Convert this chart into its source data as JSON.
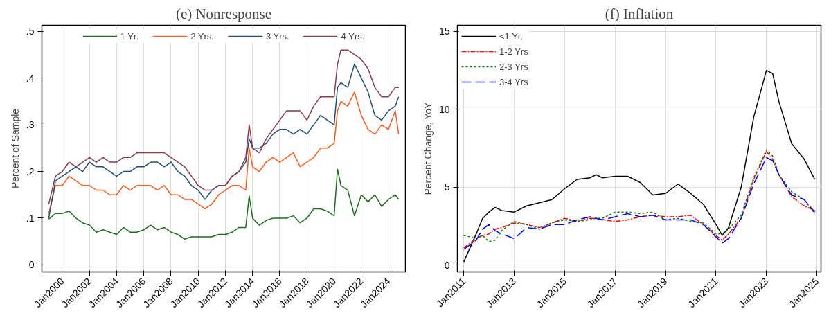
{
  "chart_data": [
    {
      "type": "line",
      "title": "(e) Nonresponse",
      "ylabel": "Percent of Sample",
      "legend": "top",
      "grid": "x",
      "line_style": "solid",
      "x": [
        "1999-01",
        "1999-07",
        "2000-01",
        "2000-07",
        "2001-01",
        "2001-07",
        "2002-01",
        "2002-07",
        "2003-01",
        "2003-07",
        "2004-01",
        "2004-07",
        "2005-01",
        "2005-07",
        "2006-01",
        "2006-07",
        "2007-01",
        "2007-07",
        "2008-01",
        "2008-07",
        "2009-01",
        "2009-07",
        "2010-01",
        "2010-07",
        "2011-01",
        "2011-07",
        "2012-01",
        "2012-07",
        "2013-01",
        "2013-07",
        "2013-10",
        "2014-01",
        "2014-07",
        "2015-01",
        "2015-07",
        "2016-01",
        "2016-07",
        "2017-01",
        "2017-07",
        "2018-01",
        "2018-07",
        "2019-01",
        "2019-07",
        "2020-01",
        "2020-04",
        "2020-07",
        "2021-01",
        "2021-07",
        "2022-01",
        "2022-07",
        "2023-01",
        "2023-07",
        "2024-01",
        "2024-07",
        "2024-10"
      ],
      "xlim": [
        "1998-07",
        "2025-04"
      ],
      "xticks": [
        {
          "value": "2000-01",
          "label": "Jan2000"
        },
        {
          "value": "2002-01",
          "label": "Jan2002"
        },
        {
          "value": "2004-01",
          "label": "Jan2004"
        },
        {
          "value": "2006-01",
          "label": "Jan2006"
        },
        {
          "value": "2008-01",
          "label": "Jan2008"
        },
        {
          "value": "2010-01",
          "label": "Jan2010"
        },
        {
          "value": "2012-01",
          "label": "Jan2012"
        },
        {
          "value": "2014-01",
          "label": "Jan2014"
        },
        {
          "value": "2016-01",
          "label": "Jan2016"
        },
        {
          "value": "2018-01",
          "label": "Jan2018"
        },
        {
          "value": "2020-01",
          "label": "Jan2020"
        },
        {
          "value": "2022-01",
          "label": "Jan2022"
        },
        {
          "value": "2024-01",
          "label": "Jan2024"
        }
      ],
      "ylim": [
        -0.015,
        0.513
      ],
      "yticks": [
        0,
        {
          "value": 0.1,
          "label": ".1"
        },
        {
          "value": 0.2,
          "label": ".2"
        },
        {
          "value": 0.3,
          "label": ".3"
        },
        {
          "value": 0.4,
          "label": ".4"
        },
        {
          "value": 0.5,
          "label": ".5"
        }
      ],
      "series": [
        {
          "name": "1 Yr.",
          "color": "#1a6e1a",
          "values": [
            0.098,
            0.11,
            0.11,
            0.115,
            0.1,
            0.09,
            0.085,
            0.07,
            0.075,
            0.07,
            0.065,
            0.08,
            0.07,
            0.07,
            0.075,
            0.085,
            0.075,
            0.08,
            0.07,
            0.065,
            0.055,
            0.06,
            0.06,
            0.06,
            0.06,
            0.065,
            0.065,
            0.07,
            0.08,
            0.08,
            0.148,
            0.1,
            0.085,
            0.095,
            0.1,
            0.1,
            0.1,
            0.105,
            0.09,
            0.1,
            0.12,
            0.12,
            0.115,
            0.105,
            0.205,
            0.17,
            0.16,
            0.105,
            0.15,
            0.135,
            0.15,
            0.125,
            0.14,
            0.15,
            0.14
          ]
        },
        {
          "name": "2 Yrs.",
          "color": "#ff5a1a",
          "values": [
            0.11,
            0.17,
            0.17,
            0.19,
            0.18,
            0.17,
            0.17,
            0.16,
            0.16,
            0.15,
            0.15,
            0.17,
            0.16,
            0.17,
            0.17,
            0.17,
            0.16,
            0.17,
            0.15,
            0.15,
            0.14,
            0.14,
            0.13,
            0.12,
            0.13,
            0.15,
            0.16,
            0.17,
            0.17,
            0.16,
            0.25,
            0.21,
            0.2,
            0.22,
            0.23,
            0.22,
            0.23,
            0.24,
            0.21,
            0.22,
            0.23,
            0.25,
            0.25,
            0.26,
            0.33,
            0.35,
            0.34,
            0.37,
            0.32,
            0.29,
            0.28,
            0.3,
            0.29,
            0.33,
            0.28
          ]
        },
        {
          "name": "3 Yrs.",
          "color": "#1f4e79",
          "values": [
            0.1,
            0.18,
            0.19,
            0.2,
            0.21,
            0.2,
            0.22,
            0.21,
            0.21,
            0.2,
            0.19,
            0.2,
            0.2,
            0.21,
            0.21,
            0.22,
            0.22,
            0.21,
            0.22,
            0.2,
            0.19,
            0.17,
            0.16,
            0.14,
            0.16,
            0.17,
            0.17,
            0.19,
            0.2,
            0.22,
            0.27,
            0.25,
            0.25,
            0.26,
            0.28,
            0.29,
            0.29,
            0.28,
            0.29,
            0.28,
            0.3,
            0.32,
            0.31,
            0.3,
            0.38,
            0.39,
            0.38,
            0.43,
            0.4,
            0.37,
            0.32,
            0.31,
            0.33,
            0.34,
            0.36
          ]
        },
        {
          "name": "4 Yrs.",
          "color": "#8b3a4a",
          "values": [
            0.13,
            0.19,
            0.2,
            0.22,
            0.21,
            0.22,
            0.23,
            0.22,
            0.23,
            0.22,
            0.22,
            0.23,
            0.23,
            0.24,
            0.24,
            0.24,
            0.24,
            0.24,
            0.23,
            0.22,
            0.21,
            0.19,
            0.17,
            0.16,
            0.16,
            0.17,
            0.17,
            0.19,
            0.2,
            0.23,
            0.3,
            0.25,
            0.24,
            0.27,
            0.29,
            0.31,
            0.33,
            0.33,
            0.33,
            0.31,
            0.34,
            0.36,
            0.36,
            0.36,
            0.43,
            0.46,
            0.46,
            0.45,
            0.44,
            0.42,
            0.38,
            0.36,
            0.36,
            0.38,
            0.38
          ]
        }
      ]
    },
    {
      "type": "line",
      "title": "(f) Inflation",
      "ylabel": "Percent Change, YoY",
      "legend": "top left",
      "grid": true,
      "x": [
        "2011-01",
        "2011-07",
        "2011-10",
        "2012-01",
        "2012-04",
        "2012-07",
        "2013-01",
        "2013-07",
        "2014-01",
        "2014-07",
        "2015-01",
        "2015-07",
        "2016-01",
        "2016-04",
        "2016-07",
        "2017-01",
        "2017-07",
        "2018-01",
        "2018-07",
        "2019-01",
        "2019-07",
        "2020-01",
        "2020-07",
        "2021-01",
        "2021-04",
        "2021-07",
        "2022-01",
        "2022-07",
        "2023-01",
        "2023-04",
        "2023-07",
        "2024-01",
        "2024-07",
        "2024-12"
      ],
      "xlim": [
        "2010-10",
        "2025-03"
      ],
      "xticks": [
        {
          "value": "2011-01",
          "label": "Jan2011"
        },
        {
          "value": "2013-01",
          "label": "Jan2013"
        },
        {
          "value": "2015-01",
          "label": "Jan2015"
        },
        {
          "value": "2017-01",
          "label": "Jan2017"
        },
        {
          "value": "2019-01",
          "label": "Jan2019"
        },
        {
          "value": "2021-01",
          "label": "Jan2021"
        },
        {
          "value": "2023-01",
          "label": "Jan2023"
        },
        {
          "value": "2025-01",
          "label": "Jan2025"
        }
      ],
      "ylim": [
        -0.44,
        15.4
      ],
      "yticks": [
        0,
        5,
        10,
        15
      ],
      "series": [
        {
          "name": "<1 Yr.",
          "color": "#000000",
          "line_style": "solid",
          "values": [
            0.2,
            2.0,
            3.0,
            3.4,
            3.7,
            3.5,
            3.4,
            3.8,
            4.0,
            4.2,
            4.9,
            5.5,
            5.6,
            5.8,
            5.6,
            5.7,
            5.7,
            5.3,
            4.5,
            4.6,
            5.2,
            4.6,
            3.9,
            2.6,
            1.9,
            2.4,
            5.0,
            9.5,
            12.5,
            12.3,
            10.5,
            7.8,
            6.8,
            5.5
          ]
        },
        {
          "name": "1-2 Yrs",
          "color": "#ff0000",
          "line_style": "dashdot",
          "values": [
            1.1,
            1.7,
            1.9,
            2.0,
            2.3,
            2.4,
            2.7,
            2.6,
            2.4,
            2.7,
            3.0,
            2.8,
            3.0,
            3.0,
            2.9,
            2.8,
            2.9,
            3.1,
            3.2,
            3.1,
            3.1,
            3.2,
            2.6,
            1.9,
            1.6,
            2.0,
            3.0,
            5.5,
            7.3,
            6.8,
            5.8,
            4.4,
            3.8,
            3.5
          ]
        },
        {
          "name": "2-3 Yrs",
          "color": "#008000",
          "line_style": "dotted",
          "values": [
            1.9,
            1.7,
            1.9,
            1.5,
            1.6,
            2.2,
            2.8,
            2.6,
            2.3,
            2.7,
            2.9,
            2.8,
            2.9,
            3.0,
            3.0,
            3.4,
            3.4,
            3.3,
            3.4,
            2.9,
            3.0,
            2.8,
            2.7,
            2.0,
            2.0,
            2.3,
            3.2,
            5.6,
            7.4,
            7.0,
            5.8,
            4.7,
            4.2,
            3.3
          ]
        },
        {
          "name": "3-4 Yrs",
          "color": "#0000ff",
          "line_style": "dashed",
          "values": [
            1.0,
            1.6,
            2.3,
            2.6,
            2.2,
            2.0,
            1.7,
            2.4,
            2.3,
            2.6,
            2.6,
            2.9,
            3.1,
            3.0,
            2.9,
            3.1,
            3.3,
            3.1,
            3.2,
            2.9,
            2.9,
            2.9,
            2.6,
            1.8,
            1.4,
            1.7,
            3.0,
            5.2,
            6.9,
            6.7,
            5.8,
            4.5,
            4.2,
            3.4
          ]
        }
      ]
    }
  ]
}
